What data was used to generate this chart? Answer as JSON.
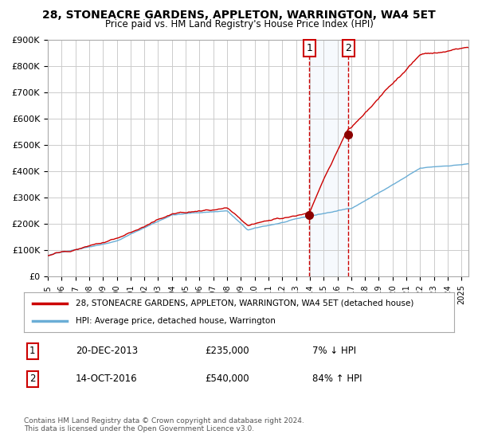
{
  "title": "28, STONEACRE GARDENS, APPLETON, WARRINGTON, WA4 5ET",
  "subtitle": "Price paid vs. HM Land Registry's House Price Index (HPI)",
  "legend_line1": "28, STONEACRE GARDENS, APPLETON, WARRINGTON, WA4 5ET (detached house)",
  "legend_line2": "HPI: Average price, detached house, Warrington",
  "transaction1_date": "20-DEC-2013",
  "transaction1_price": 235000,
  "transaction1_hpi": "7% ↓ HPI",
  "transaction2_date": "14-OCT-2016",
  "transaction2_price": 540000,
  "transaction2_hpi": "84% ↑ HPI",
  "footer": "Contains HM Land Registry data © Crown copyright and database right 2024.\nThis data is licensed under the Open Government Licence v3.0.",
  "hpi_line_color": "#6baed6",
  "price_line_color": "#cc0000",
  "dot_color": "#8b0000",
  "vline_color": "#cc0000",
  "shade_color": "#ddeeff",
  "background_color": "#ffffff",
  "grid_color": "#cccccc",
  "ylim": [
    0,
    900000
  ],
  "x_start_year": 1995,
  "x_end_year": 2025,
  "transaction1_year": 2013.97,
  "transaction2_year": 2016.79
}
